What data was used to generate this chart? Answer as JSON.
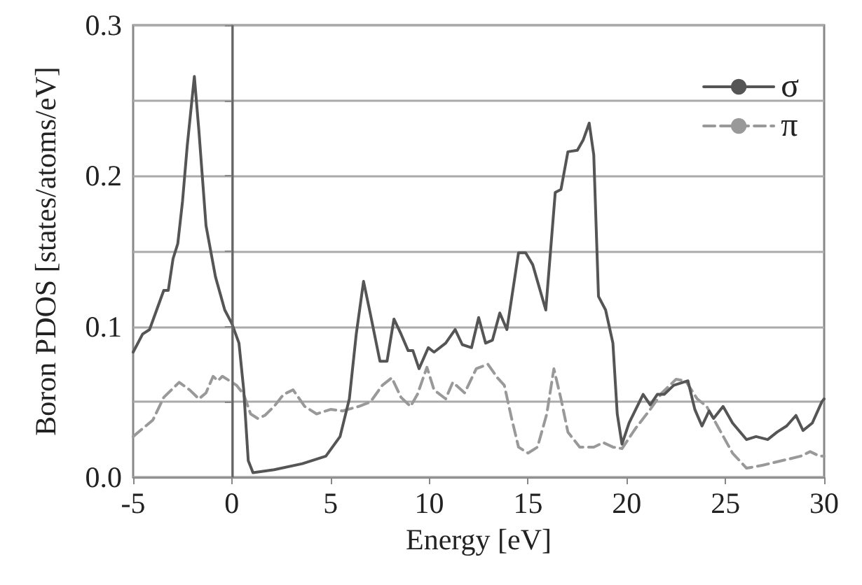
{
  "chart_data": {
    "type": "line",
    "xlabel": "Energy [eV]",
    "ylabel": "Boron PDOS [states/atoms/eV]",
    "xlim": [
      -5,
      30
    ],
    "xticks": [
      -5,
      0,
      5,
      10,
      15,
      20,
      25,
      30
    ],
    "ylim": [
      0,
      0.3
    ],
    "yticks": [
      {
        "value": 0,
        "label": "0.0"
      },
      {
        "value": 0.05,
        "label": null
      },
      {
        "value": 0.1,
        "label": "0.1"
      },
      {
        "value": 0.15,
        "label": null
      },
      {
        "value": 0.2,
        "label": "0.2"
      },
      {
        "value": 0.25,
        "label": null
      },
      {
        "value": 0.3,
        "label": "0.3"
      }
    ],
    "grid": "y",
    "legend": "top right",
    "marker": "none",
    "ref_lines": [
      {
        "axis": "x",
        "value": 0,
        "color": "#666666"
      }
    ],
    "series": [
      {
        "name": "σ",
        "color": "#555555",
        "line_style": "solid",
        "x": [
          -5,
          -4.52,
          -4.17,
          -3.81,
          -3.45,
          -3.22,
          -2.98,
          -2.74,
          -2.5,
          -2.26,
          -1.9,
          -1.67,
          -1.31,
          -0.83,
          -0.36,
          0,
          0.36,
          0.6,
          0.83,
          1.07,
          2.14,
          3.57,
          4.76,
          5.48,
          5.95,
          6.3,
          6.67,
          7.02,
          7.5,
          7.86,
          8.21,
          8.57,
          8.93,
          9.17,
          9.48,
          9.95,
          10.24,
          10.83,
          11.31,
          11.67,
          12.14,
          12.5,
          12.85,
          13.2,
          13.57,
          13.93,
          14.52,
          14.88,
          15.24,
          15.9,
          16.38,
          16.67,
          17.02,
          17.5,
          17.8,
          18.1,
          18.33,
          18.57,
          18.93,
          19.3,
          19.52,
          19.76,
          20.12,
          20.83,
          21.19,
          21.55,
          21.9,
          22.38,
          23.1,
          23.45,
          23.81,
          24.17,
          24.4,
          24.88,
          25.36,
          26.07,
          26.55,
          27.14,
          27.62,
          28.1,
          28.57,
          28.93,
          29.4,
          29.88,
          30
        ],
        "values": [
          0.083,
          0.095,
          0.098,
          0.111,
          0.124,
          0.124,
          0.145,
          0.155,
          0.183,
          0.22,
          0.266,
          0.23,
          0.167,
          0.133,
          0.111,
          0.102,
          0.089,
          0.058,
          0.011,
          0.003,
          0.005,
          0.009,
          0.014,
          0.027,
          0.052,
          0.095,
          0.13,
          0.108,
          0.077,
          0.077,
          0.105,
          0.095,
          0.084,
          0.084,
          0.072,
          0.086,
          0.083,
          0.089,
          0.098,
          0.088,
          0.086,
          0.106,
          0.089,
          0.091,
          0.109,
          0.098,
          0.149,
          0.149,
          0.141,
          0.111,
          0.189,
          0.191,
          0.216,
          0.217,
          0.224,
          0.235,
          0.214,
          0.12,
          0.111,
          0.089,
          0.042,
          0.022,
          0.036,
          0.055,
          0.048,
          0.055,
          0.055,
          0.061,
          0.064,
          0.045,
          0.034,
          0.044,
          0.039,
          0.047,
          0.036,
          0.025,
          0.027,
          0.025,
          0.03,
          0.034,
          0.041,
          0.031,
          0.036,
          0.05,
          0.052
        ]
      },
      {
        "name": "π",
        "color": "#999999",
        "line_style": "dashed",
        "x": [
          -5,
          -4,
          -3.45,
          -2.67,
          -2.14,
          -1.67,
          -1.31,
          -0.95,
          -0.71,
          -0.48,
          -0.12,
          0.24,
          0.6,
          0.95,
          1.31,
          1.67,
          2.14,
          2.62,
          3.1,
          3.69,
          4.29,
          5,
          5.6,
          6.43,
          7.02,
          7.62,
          8.1,
          8.57,
          9.05,
          9.4,
          9.88,
          10.24,
          10.83,
          11.19,
          11.79,
          12.38,
          12.97,
          13.45,
          13.8,
          14.17,
          14.52,
          15,
          15.48,
          15.95,
          16.31,
          16.67,
          17.02,
          17.62,
          18.33,
          18.81,
          19.3,
          19.76,
          20.48,
          21.19,
          21.78,
          22.5,
          22.98,
          23.57,
          24.05,
          24.64,
          25.36,
          26.07,
          26.9,
          27.86,
          28.81,
          29.29,
          29.76,
          30
        ],
        "values": [
          0.027,
          0.038,
          0.053,
          0.063,
          0.058,
          0.052,
          0.056,
          0.067,
          0.064,
          0.067,
          0.064,
          0.061,
          0.055,
          0.042,
          0.039,
          0.041,
          0.047,
          0.055,
          0.058,
          0.047,
          0.042,
          0.045,
          0.044,
          0.047,
          0.05,
          0.061,
          0.066,
          0.053,
          0.047,
          0.055,
          0.073,
          0.058,
          0.052,
          0.063,
          0.056,
          0.072,
          0.075,
          0.066,
          0.061,
          0.039,
          0.02,
          0.016,
          0.02,
          0.042,
          0.072,
          0.052,
          0.03,
          0.02,
          0.02,
          0.023,
          0.02,
          0.019,
          0.033,
          0.045,
          0.056,
          0.065,
          0.064,
          0.052,
          0.047,
          0.033,
          0.016,
          0.006,
          0.008,
          0.011,
          0.014,
          0.017,
          0.014,
          0.014
        ]
      }
    ]
  }
}
